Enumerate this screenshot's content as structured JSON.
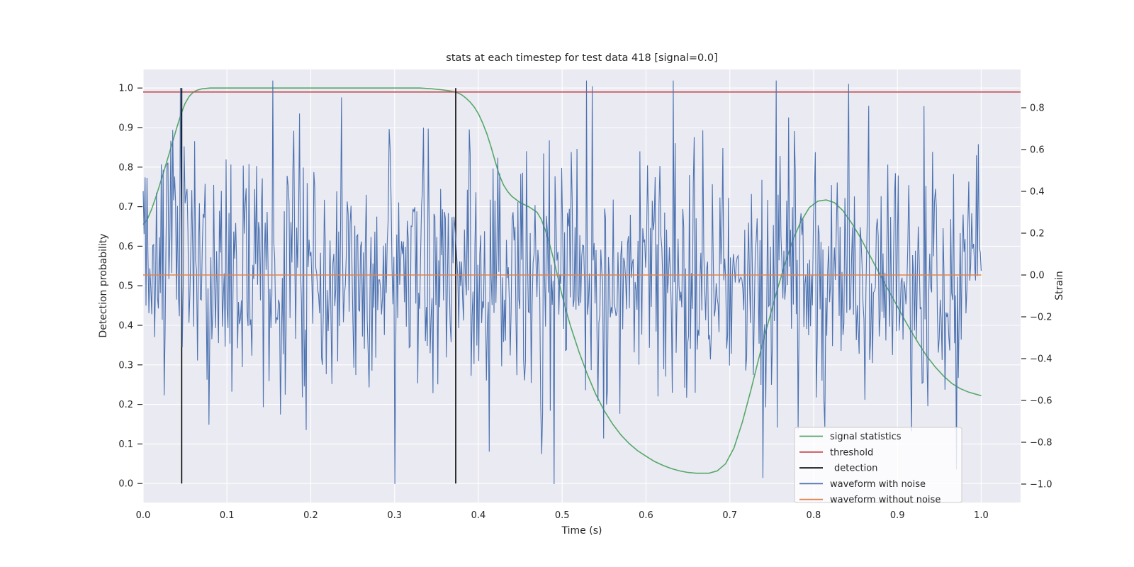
{
  "figure": {
    "background": "#ffffff",
    "plot_background": "#eaeaf2",
    "grid_color": "#ffffff",
    "text_color": "#262626",
    "tick_color": "#262626"
  },
  "chart_data": {
    "type": "line",
    "title": "stats at each timestep for test data 418 [signal=0.0]",
    "xlabel": "Time (s)",
    "ylabel_left": "Detection probability",
    "ylabel_right": "Strain",
    "xlim": [
      0.0,
      1.047
    ],
    "ylim_left": [
      -0.048,
      1.047
    ],
    "ylim_right": [
      -1.088,
      0.983
    ],
    "grid": true,
    "legend_position": "lower right",
    "x_tick_values": [
      0.0,
      0.1,
      0.2,
      0.3,
      0.4,
      0.5,
      0.6,
      0.7,
      0.8,
      0.9,
      1.0
    ],
    "x_tick_labels": [
      "0.0",
      "0.1",
      "0.2",
      "0.3",
      "0.4",
      "0.5",
      "0.6",
      "0.7",
      "0.8",
      "0.9",
      "1.0"
    ],
    "y_tick_values": [
      0.0,
      0.1,
      0.2,
      0.3,
      0.4,
      0.5,
      0.6,
      0.7,
      0.8,
      0.9,
      1.0
    ],
    "y_tick_labels": [
      "0.0",
      "0.1",
      "0.2",
      "0.3",
      "0.4",
      "0.5",
      "0.6",
      "0.7",
      "0.8",
      "0.9",
      "1.0"
    ],
    "y2_tick_values": [
      0.8,
      0.6,
      0.4,
      0.2,
      0.0,
      -0.2,
      -0.4,
      -0.6,
      -0.8,
      -1.0
    ],
    "y2_tick_labels": [
      "0.8",
      "0.6",
      "0.4",
      "0.2",
      "0.0",
      "−0.2",
      "−0.4",
      "−0.6",
      "−0.8",
      "−1.0"
    ],
    "series": [
      {
        "name": "signal statistics",
        "type": "line",
        "axis": "left",
        "color": "#55a868",
        "linewidth": 1.6,
        "points": [
          [
            0,
            0.655
          ],
          [
            0.005,
            0.668
          ],
          [
            0.01,
            0.693
          ],
          [
            0.015,
            0.723
          ],
          [
            0.02,
            0.757
          ],
          [
            0.025,
            0.792
          ],
          [
            0.03,
            0.827
          ],
          [
            0.035,
            0.863
          ],
          [
            0.04,
            0.899
          ],
          [
            0.045,
            0.933
          ],
          [
            0.05,
            0.961
          ],
          [
            0.055,
            0.979
          ],
          [
            0.06,
            0.99
          ],
          [
            0.065,
            0.995
          ],
          [
            0.07,
            0.998
          ],
          [
            0.08,
            1.0
          ],
          [
            0.15,
            1.0
          ],
          [
            0.25,
            1.0
          ],
          [
            0.33,
            1.0
          ],
          [
            0.345,
            0.998
          ],
          [
            0.355,
            0.996
          ],
          [
            0.365,
            0.993
          ],
          [
            0.373,
            0.99
          ],
          [
            0.38,
            0.983
          ],
          [
            0.385,
            0.975
          ],
          [
            0.39,
            0.965
          ],
          [
            0.395,
            0.952
          ],
          [
            0.4,
            0.935
          ],
          [
            0.405,
            0.912
          ],
          [
            0.41,
            0.885
          ],
          [
            0.415,
            0.852
          ],
          [
            0.42,
            0.815
          ],
          [
            0.425,
            0.78
          ],
          [
            0.43,
            0.755
          ],
          [
            0.435,
            0.738
          ],
          [
            0.44,
            0.726
          ],
          [
            0.45,
            0.71
          ],
          [
            0.46,
            0.7
          ],
          [
            0.47,
            0.686
          ],
          [
            0.475,
            0.668
          ],
          [
            0.48,
            0.64
          ],
          [
            0.485,
            0.605
          ],
          [
            0.49,
            0.565
          ],
          [
            0.495,
            0.52
          ],
          [
            0.5,
            0.475
          ],
          [
            0.505,
            0.435
          ],
          [
            0.51,
            0.398
          ],
          [
            0.52,
            0.333
          ],
          [
            0.53,
            0.276
          ],
          [
            0.54,
            0.226
          ],
          [
            0.55,
            0.185
          ],
          [
            0.56,
            0.151
          ],
          [
            0.57,
            0.123
          ],
          [
            0.58,
            0.101
          ],
          [
            0.59,
            0.083
          ],
          [
            0.6,
            0.069
          ],
          [
            0.61,
            0.056
          ],
          [
            0.62,
            0.046
          ],
          [
            0.63,
            0.038
          ],
          [
            0.64,
            0.032
          ],
          [
            0.65,
            0.028
          ],
          [
            0.66,
            0.026
          ],
          [
            0.675,
            0.026
          ],
          [
            0.685,
            0.032
          ],
          [
            0.695,
            0.05
          ],
          [
            0.705,
            0.09
          ],
          [
            0.715,
            0.155
          ],
          [
            0.725,
            0.235
          ],
          [
            0.735,
            0.32
          ],
          [
            0.745,
            0.4
          ],
          [
            0.755,
            0.478
          ],
          [
            0.765,
            0.55
          ],
          [
            0.775,
            0.615
          ],
          [
            0.785,
            0.663
          ],
          [
            0.795,
            0.698
          ],
          [
            0.805,
            0.714
          ],
          [
            0.815,
            0.717
          ],
          [
            0.825,
            0.71
          ],
          [
            0.835,
            0.69
          ],
          [
            0.845,
            0.66
          ],
          [
            0.855,
            0.625
          ],
          [
            0.865,
            0.585
          ],
          [
            0.875,
            0.545
          ],
          [
            0.885,
            0.505
          ],
          [
            0.895,
            0.467
          ],
          [
            0.905,
            0.428
          ],
          [
            0.915,
            0.39
          ],
          [
            0.925,
            0.355
          ],
          [
            0.935,
            0.322
          ],
          [
            0.945,
            0.295
          ],
          [
            0.955,
            0.272
          ],
          [
            0.965,
            0.253
          ],
          [
            0.975,
            0.24
          ],
          [
            0.985,
            0.231
          ],
          [
            1.0,
            0.222
          ]
        ]
      },
      {
        "name": "threshold",
        "type": "hline_full",
        "axis": "left",
        "color": "#c44e52",
        "linewidth": 1.6,
        "value": 0.99
      },
      {
        "name": "detection",
        "type": "vline",
        "axis": "left",
        "color": "#000000",
        "linewidth": 1.6,
        "times": [
          0.046,
          0.373
        ],
        "y_span": [
          0.0,
          1.0
        ]
      },
      {
        "name": "waveform with noise",
        "type": "noise_line",
        "axis": "right",
        "color": "#4c72b0",
        "linewidth": 1.1,
        "n": 880,
        "mean": 0.0,
        "std": 0.3,
        "seed": 418,
        "clip": [
          -1.0,
          0.93
        ],
        "t_range": [
          0.0,
          1.0
        ],
        "feature_points": [
          [
            0.155,
            0.93
          ],
          [
            0.3,
            -1.0
          ],
          [
            0.74,
            -0.97
          ],
          [
            0.97,
            -0.93
          ]
        ]
      },
      {
        "name": "waveform without noise",
        "type": "hline_data",
        "axis": "right",
        "color": "#dd8452",
        "linewidth": 1.6,
        "value": 0.0,
        "t_range": [
          0.0,
          1.0
        ]
      }
    ],
    "legend_items": [
      {
        "label": "signal statistics",
        "color": "#55a868",
        "indent": 0
      },
      {
        "label": "threshold",
        "color": "#c44e52",
        "indent": 0
      },
      {
        "label": "detection",
        "color": "#000000",
        "indent": 6
      },
      {
        "label": "waveform with noise",
        "color": "#4c72b0",
        "indent": 0
      },
      {
        "label": "waveform without noise",
        "color": "#dd8452",
        "indent": 0
      }
    ]
  }
}
